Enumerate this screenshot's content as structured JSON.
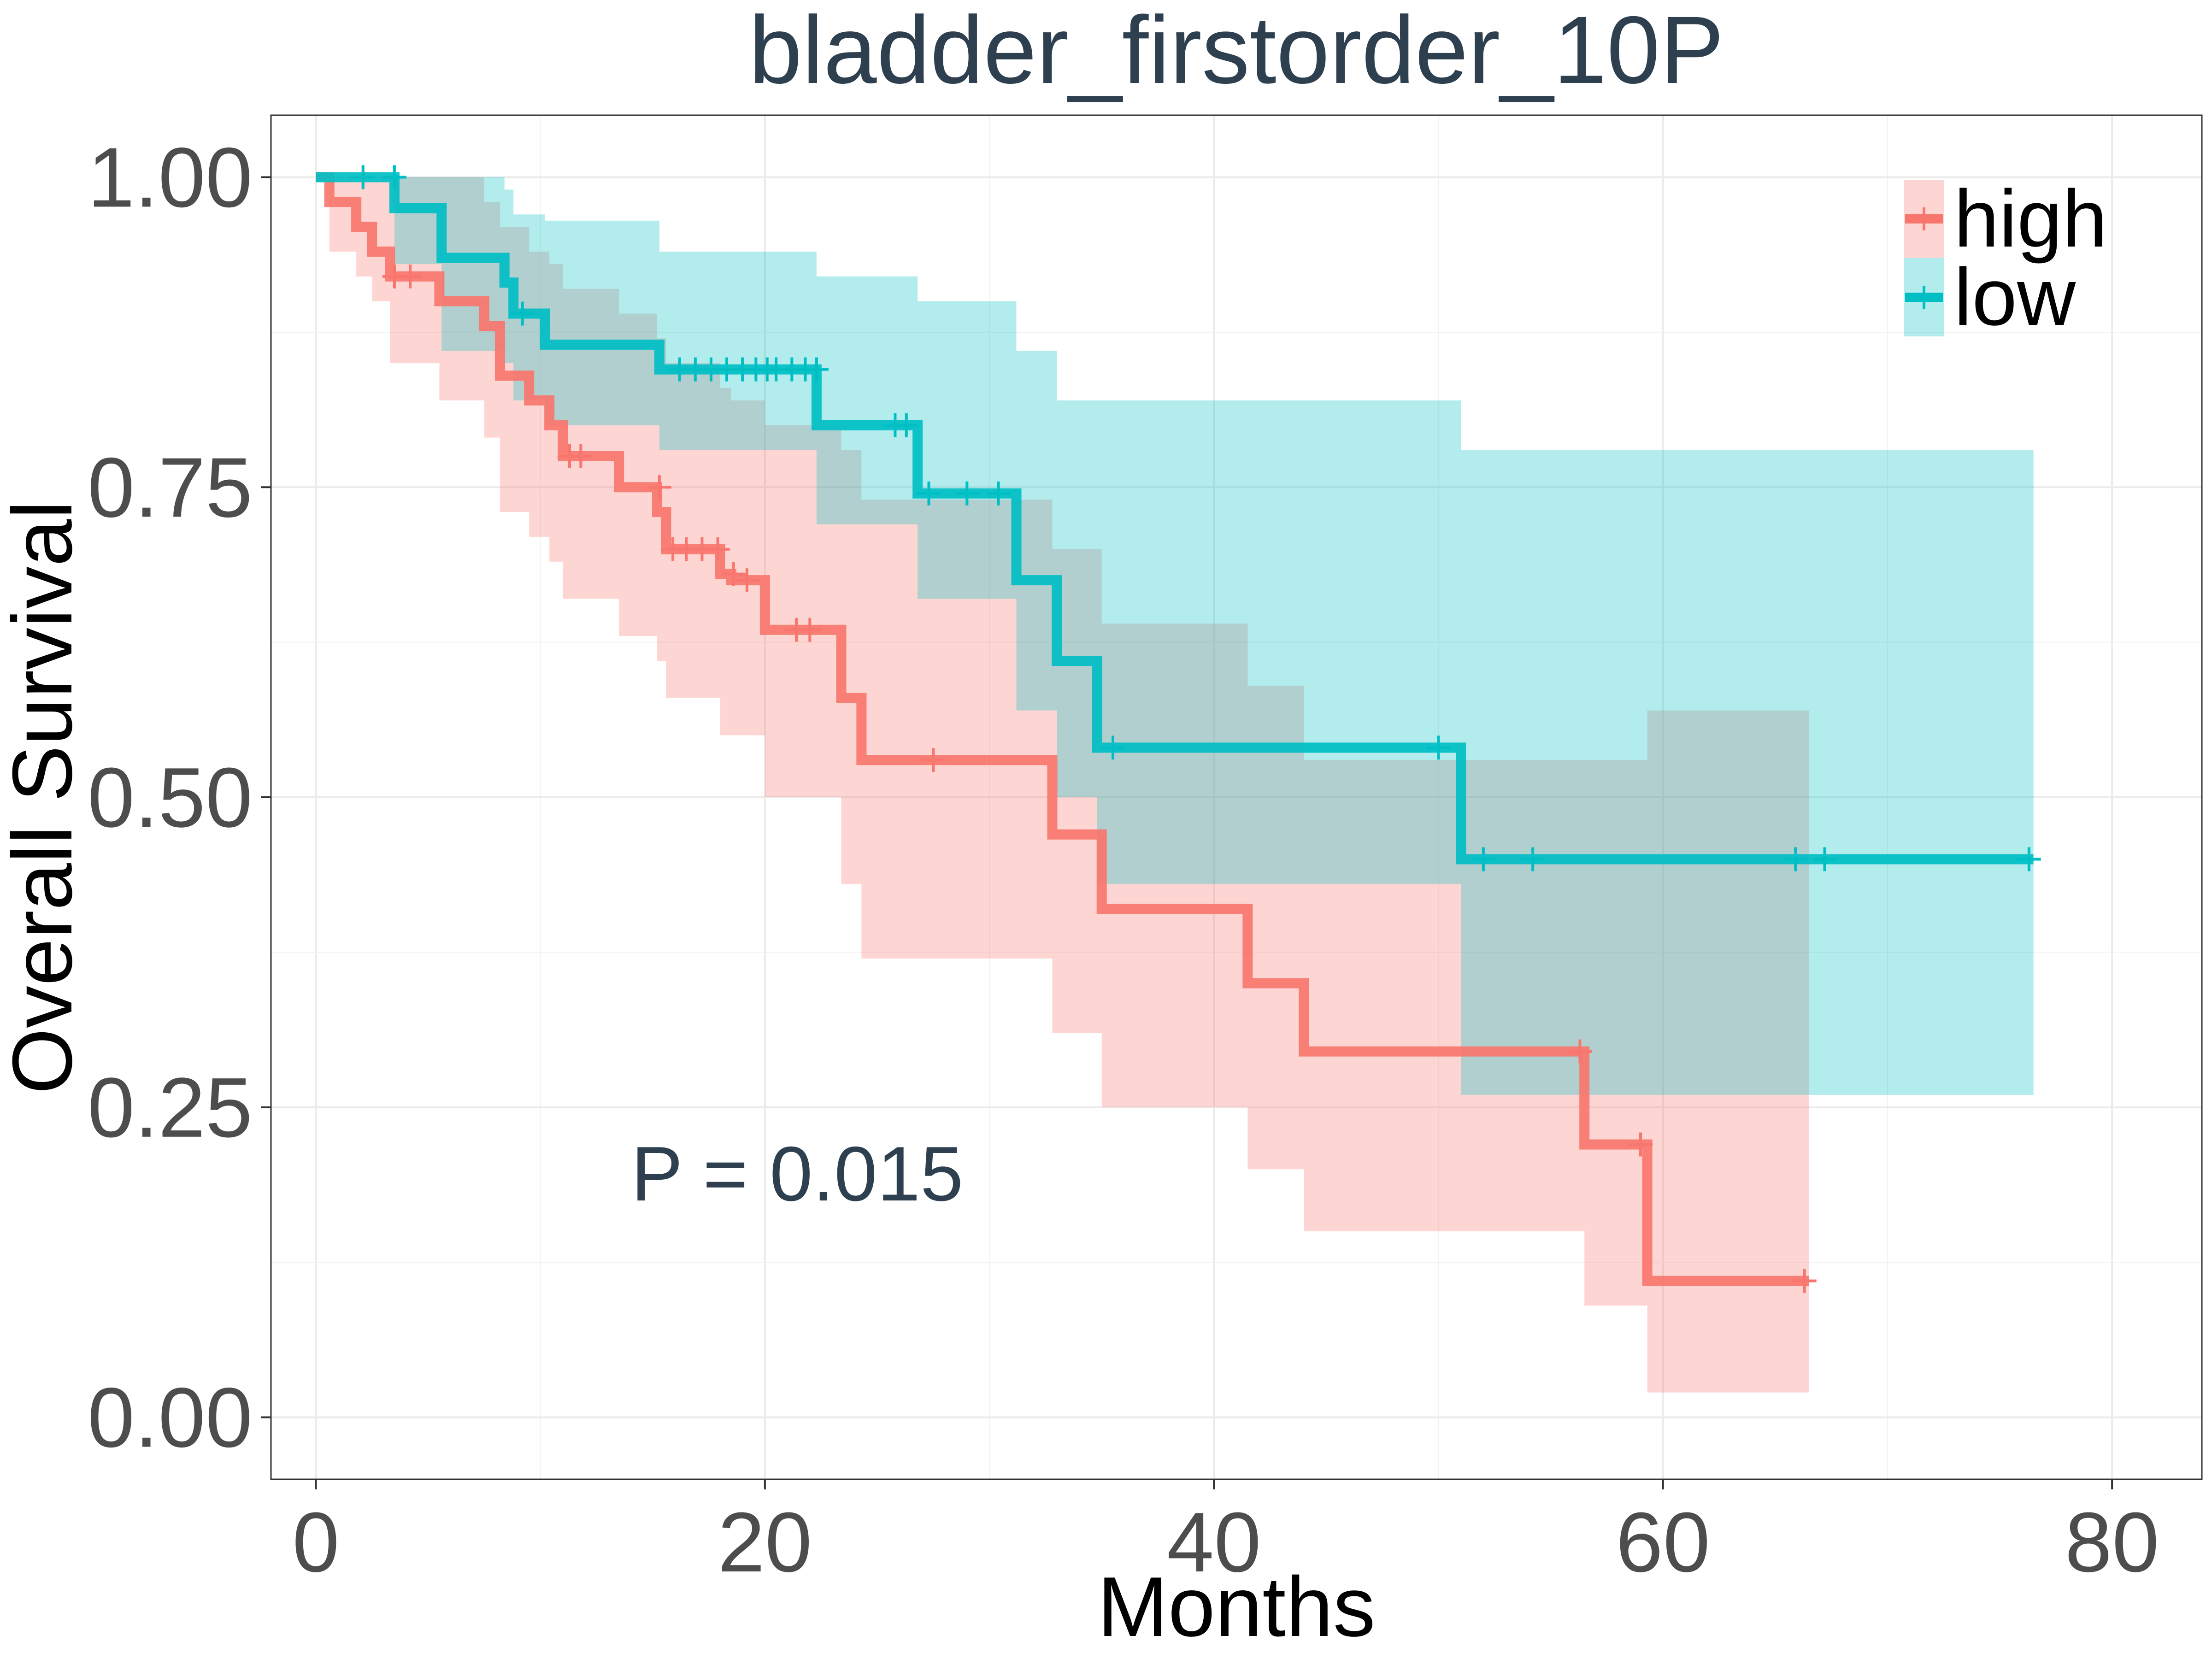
{
  "chart_data": {
    "type": "line",
    "subtype": "kaplan-meier",
    "title": "bladder_firstorder_10P",
    "xlabel": "Months",
    "ylabel": "Overall Survival",
    "xlim": [
      -2,
      84
    ],
    "ylim": [
      -0.05,
      1.05
    ],
    "x_ticks": [
      0,
      20,
      40,
      60,
      80
    ],
    "x_tick_labels": [
      "0",
      "20",
      "40",
      "60",
      "80"
    ],
    "y_ticks": [
      0,
      0.25,
      0.5,
      0.75,
      1
    ],
    "y_tick_labels": [
      "0.00",
      "0.25",
      "0.50",
      "0.75",
      "1.00"
    ],
    "grid": true,
    "legend_position": "top-right",
    "annotation": "P = 0.015",
    "series": [
      {
        "name": "high",
        "color": "#f8766d",
        "step_x": [
          0,
          0.6,
          1.8,
          2.5,
          3.3,
          5.5,
          7.5,
          8.2,
          9.5,
          10.4,
          11,
          13.5,
          15.2,
          15.6,
          18,
          18.5,
          20,
          23.4,
          24.3,
          32.8,
          35,
          41.5,
          44,
          56.5,
          59.3,
          66.5
        ],
        "step_y": [
          1,
          0.98,
          0.96,
          0.94,
          0.92,
          0.9,
          0.88,
          0.84,
          0.82,
          0.8,
          0.775,
          0.75,
          0.73,
          0.7,
          0.68,
          0.675,
          0.635,
          0.58,
          0.53,
          0.47,
          0.41,
          0.35,
          0.295,
          0.22,
          0.11,
          0.11
        ],
        "ci_upper": [
          1,
          1,
          1,
          1,
          1,
          1,
          0.98,
          0.96,
          0.94,
          0.93,
          0.91,
          0.89,
          0.87,
          0.85,
          0.83,
          0.82,
          0.8,
          0.78,
          0.74,
          0.7,
          0.64,
          0.59,
          0.53,
          0.53,
          0.57,
          0.57
        ],
        "ci_lower": [
          1,
          0.94,
          0.92,
          0.9,
          0.85,
          0.82,
          0.79,
          0.73,
          0.71,
          0.69,
          0.66,
          0.63,
          0.61,
          0.58,
          0.55,
          0.55,
          0.5,
          0.43,
          0.37,
          0.31,
          0.25,
          0.2,
          0.15,
          0.09,
          0.02,
          0.02
        ],
        "censor_x": [
          2.1,
          3.5,
          4.2,
          11.3,
          11.8,
          15.3,
          15.9,
          16.5,
          17.2,
          17.9,
          18.6,
          19.2,
          21.4,
          22,
          27.5,
          56.3,
          59,
          66.3
        ],
        "censor_y": [
          1,
          0.92,
          0.92,
          0.775,
          0.775,
          0.75,
          0.7,
          0.7,
          0.7,
          0.7,
          0.68,
          0.675,
          0.635,
          0.635,
          0.53,
          0.295,
          0.22,
          0.11
        ]
      },
      {
        "name": "low",
        "color": "#00bfc4",
        "step_x": [
          0,
          3.5,
          5.6,
          8.4,
          8.8,
          10.2,
          15.3,
          22.3,
          26.8,
          31.2,
          33,
          34.8,
          51,
          76.5
        ],
        "step_y": [
          1,
          0.975,
          0.935,
          0.915,
          0.89,
          0.865,
          0.845,
          0.8,
          0.745,
          0.675,
          0.61,
          0.54,
          0.45,
          0.45
        ],
        "ci_upper": [
          1,
          1,
          1,
          0.99,
          0.97,
          0.965,
          0.94,
          0.92,
          0.9,
          0.86,
          0.82,
          0.82,
          0.78,
          0.78
        ],
        "ci_lower": [
          1,
          0.93,
          0.86,
          0.85,
          0.82,
          0.8,
          0.78,
          0.72,
          0.66,
          0.57,
          0.5,
          0.43,
          0.26,
          0.26
        ],
        "censor_x": [
          2.1,
          3.5,
          9.2,
          16.2,
          16.9,
          17.6,
          18.3,
          19,
          19.6,
          20.1,
          20.5,
          21.2,
          21.8,
          22.3,
          25.8,
          26.3,
          27.3,
          29,
          30.4,
          35.5,
          50,
          52,
          54.2,
          65.9,
          67.2,
          76.3
        ],
        "censor_y": [
          1,
          1,
          0.89,
          0.845,
          0.845,
          0.845,
          0.845,
          0.845,
          0.845,
          0.845,
          0.845,
          0.845,
          0.845,
          0.845,
          0.8,
          0.8,
          0.745,
          0.745,
          0.745,
          0.54,
          0.54,
          0.45,
          0.45,
          0.45,
          0.45,
          0.45
        ]
      }
    ]
  }
}
